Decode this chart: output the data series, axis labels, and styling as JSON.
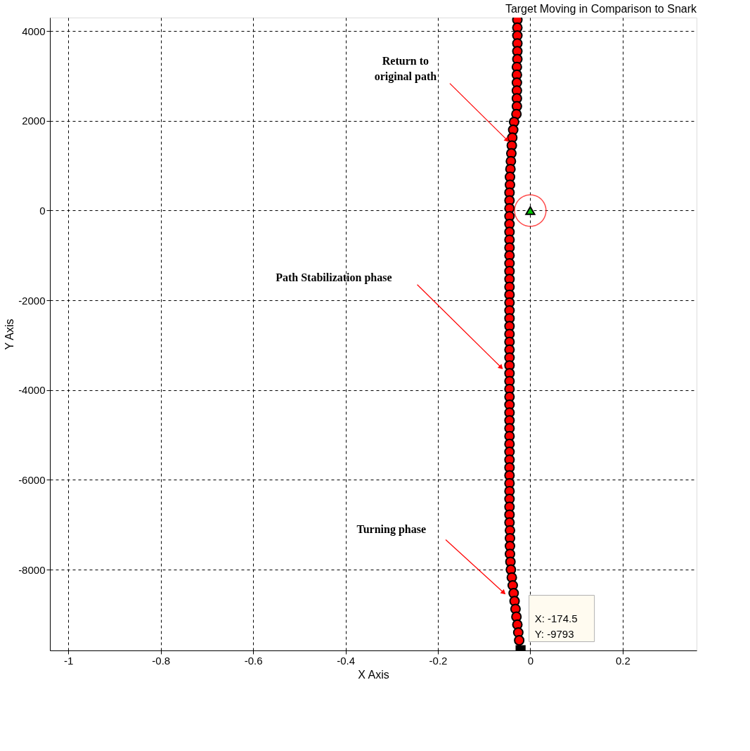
{
  "chart_data": {
    "type": "scatter",
    "title": "Target Moving in Comparison to Snark",
    "xlabel": "X Axis",
    "ylabel": "Y Axis",
    "xlim": [
      -1.04,
      0.36
    ],
    "ylim": [
      -9800,
      4300
    ],
    "xticks": [
      -1,
      -0.8,
      -0.6,
      -0.4,
      -0.2,
      0,
      0.2
    ],
    "yticks": [
      -8000,
      -6000,
      -4000,
      -2000,
      0,
      2000,
      4000
    ],
    "grid": true,
    "series": [
      {
        "color": "#ff0000",
        "marker": "circle",
        "x": [
          -0.028,
          -0.028,
          -0.028,
          -0.028,
          -0.028,
          -0.028,
          -0.029,
          -0.029,
          -0.029,
          -0.029,
          -0.029,
          -0.029,
          -0.03,
          -0.035,
          -0.037,
          -0.039,
          -0.04,
          -0.041,
          -0.042,
          -0.043,
          -0.044,
          -0.044,
          -0.045,
          -0.045,
          -0.045,
          -0.045,
          -0.045,
          -0.045,
          -0.045,
          -0.045,
          -0.045,
          -0.045,
          -0.045,
          -0.045,
          -0.045,
          -0.045,
          -0.045,
          -0.045,
          -0.045,
          -0.045,
          -0.045,
          -0.045,
          -0.045,
          -0.045,
          -0.045,
          -0.045,
          -0.045,
          -0.045,
          -0.045,
          -0.045,
          -0.045,
          -0.045,
          -0.045,
          -0.045,
          -0.045,
          -0.045,
          -0.045,
          -0.045,
          -0.045,
          -0.045,
          -0.045,
          -0.045,
          -0.045,
          -0.045,
          -0.045,
          -0.044,
          -0.044,
          -0.044,
          -0.044,
          -0.043,
          -0.042,
          -0.04,
          -0.038,
          -0.036,
          -0.034,
          -0.032,
          -0.03,
          -0.028,
          -0.026,
          -0.024
        ],
        "values": [
          4250,
          4075,
          3900,
          3725,
          3550,
          3375,
          3200,
          3025,
          2850,
          2675,
          2500,
          2325,
          2150,
          1975,
          1800,
          1625,
          1450,
          1275,
          1100,
          925,
          750,
          575,
          400,
          225,
          50,
          -125,
          -300,
          -475,
          -650,
          -825,
          -1000,
          -1175,
          -1350,
          -1525,
          -1700,
          -1875,
          -2050,
          -2225,
          -2400,
          -2575,
          -2750,
          -2925,
          -3100,
          -3275,
          -3450,
          -3625,
          -3800,
          -3975,
          -4150,
          -4325,
          -4500,
          -4675,
          -4850,
          -5025,
          -5200,
          -5375,
          -5550,
          -5725,
          -5900,
          -6075,
          -6250,
          -6425,
          -6600,
          -6775,
          -6950,
          -7125,
          -7300,
          -7475,
          -7650,
          -7825,
          -8000,
          -8175,
          -8350,
          -8525,
          -8700,
          -8875,
          -9050,
          -9225,
          -9400,
          -9575
        ]
      },
      {
        "color": "#00cc00",
        "marker": "triangle",
        "x": [
          0
        ],
        "values": [
          0
        ]
      },
      {
        "color": "#ff0000",
        "marker": "circle",
        "line_style": "solid",
        "x": [
          0
        ],
        "values": [
          0
        ]
      },
      {
        "color": "#000000",
        "marker": "square",
        "x": [
          -0.021
        ],
        "values": [
          -9793
        ]
      }
    ],
    "annotations": [
      {
        "text": "Return to\noriginal path",
        "x": -0.051,
        "y": 1580
      },
      "Path Stabilization phase",
      "Turning phase",
      "X: -174.5\nY: -9793"
    ]
  }
}
